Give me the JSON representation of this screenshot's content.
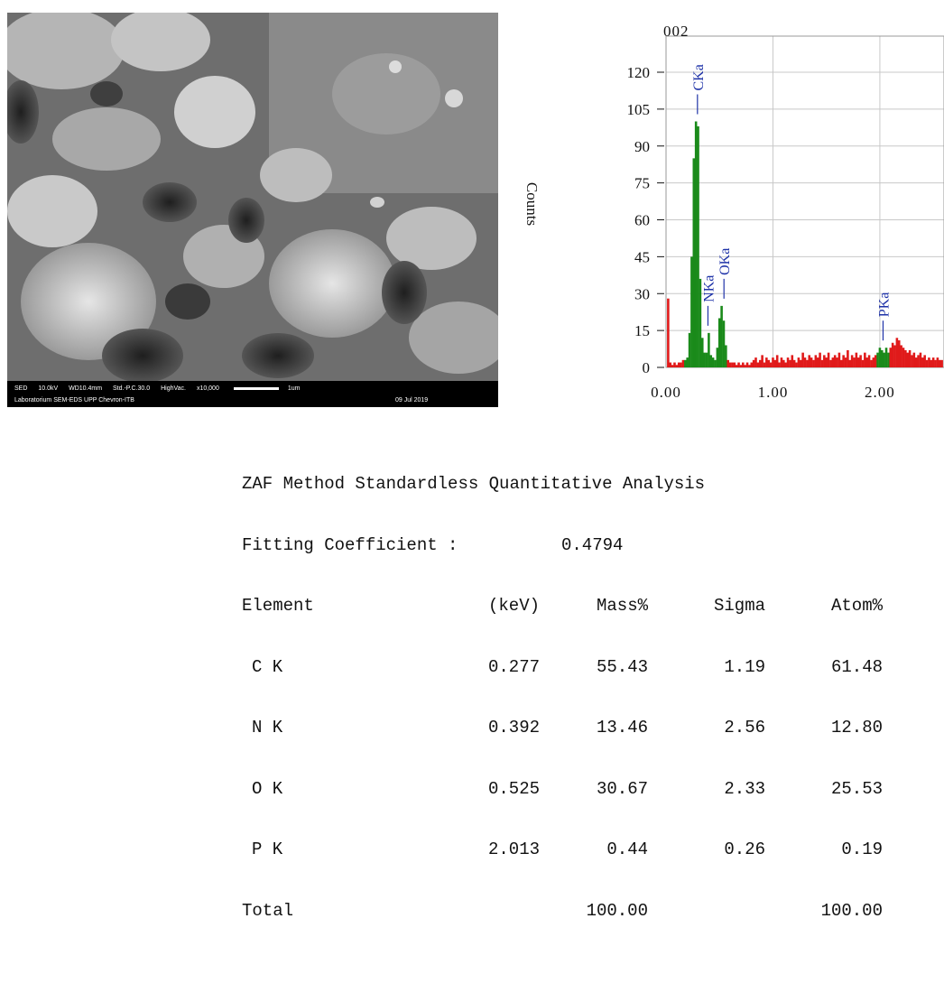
{
  "sem": {
    "scale_label": "1um",
    "info_row": [
      "SED",
      "10.0kV",
      "WD10.4mm",
      "Std.-P.C.30.0",
      "HighVac.",
      "x10,000"
    ],
    "lab": "Laboratorium SEM-EDS UPP Chevron-ITB",
    "date": "09 Jul 2019"
  },
  "chart_data": {
    "type": "bar",
    "title": "002",
    "ylabel": "Counts",
    "xlabel": "",
    "xlim": [
      0.0,
      2.6
    ],
    "ylim": [
      0,
      120
    ],
    "yticks": [
      "0",
      "15",
      "30",
      "45",
      "60",
      "75",
      "90",
      "105",
      "120"
    ],
    "xticks": [
      "0.00",
      "1.00",
      "2.00"
    ],
    "grid": true,
    "peaks": [
      {
        "label": "CKa",
        "x": 0.277,
        "y": 100,
        "color": "#1f33a8"
      },
      {
        "label": "NKa",
        "x": 0.392,
        "y": 14,
        "color": "#1f33a8"
      },
      {
        "label": "OKa",
        "x": 0.525,
        "y": 25,
        "color": "#1f33a8"
      },
      {
        "label": "PKa",
        "x": 2.013,
        "y": 8,
        "color": "#1f33a8"
      }
    ],
    "spectrum": [
      {
        "x": 0.02,
        "y": 28,
        "c": "r"
      },
      {
        "x": 0.04,
        "y": 2,
        "c": "r"
      },
      {
        "x": 0.06,
        "y": 1,
        "c": "r"
      },
      {
        "x": 0.08,
        "y": 2,
        "c": "r"
      },
      {
        "x": 0.1,
        "y": 1,
        "c": "r"
      },
      {
        "x": 0.12,
        "y": 2,
        "c": "r"
      },
      {
        "x": 0.14,
        "y": 2,
        "c": "r"
      },
      {
        "x": 0.16,
        "y": 3,
        "c": "r"
      },
      {
        "x": 0.18,
        "y": 3,
        "c": "g"
      },
      {
        "x": 0.2,
        "y": 4,
        "c": "g"
      },
      {
        "x": 0.22,
        "y": 14,
        "c": "g"
      },
      {
        "x": 0.24,
        "y": 45,
        "c": "g"
      },
      {
        "x": 0.26,
        "y": 85,
        "c": "g"
      },
      {
        "x": 0.28,
        "y": 100,
        "c": "g"
      },
      {
        "x": 0.3,
        "y": 98,
        "c": "g"
      },
      {
        "x": 0.32,
        "y": 36,
        "c": "g"
      },
      {
        "x": 0.34,
        "y": 12,
        "c": "g"
      },
      {
        "x": 0.36,
        "y": 6,
        "c": "g"
      },
      {
        "x": 0.38,
        "y": 6,
        "c": "g"
      },
      {
        "x": 0.4,
        "y": 14,
        "c": "g"
      },
      {
        "x": 0.42,
        "y": 5,
        "c": "g"
      },
      {
        "x": 0.44,
        "y": 4,
        "c": "g"
      },
      {
        "x": 0.46,
        "y": 3,
        "c": "g"
      },
      {
        "x": 0.48,
        "y": 8,
        "c": "g"
      },
      {
        "x": 0.5,
        "y": 20,
        "c": "g"
      },
      {
        "x": 0.52,
        "y": 25,
        "c": "g"
      },
      {
        "x": 0.54,
        "y": 19,
        "c": "g"
      },
      {
        "x": 0.56,
        "y": 9,
        "c": "g"
      },
      {
        "x": 0.58,
        "y": 3,
        "c": "r"
      },
      {
        "x": 0.6,
        "y": 2,
        "c": "r"
      },
      {
        "x": 0.62,
        "y": 2,
        "c": "r"
      },
      {
        "x": 0.64,
        "y": 2,
        "c": "r"
      },
      {
        "x": 0.66,
        "y": 1,
        "c": "r"
      },
      {
        "x": 0.68,
        "y": 2,
        "c": "r"
      },
      {
        "x": 0.7,
        "y": 1,
        "c": "r"
      },
      {
        "x": 0.72,
        "y": 2,
        "c": "r"
      },
      {
        "x": 0.74,
        "y": 1,
        "c": "r"
      },
      {
        "x": 0.76,
        "y": 2,
        "c": "r"
      },
      {
        "x": 0.78,
        "y": 1,
        "c": "r"
      },
      {
        "x": 0.8,
        "y": 2,
        "c": "r"
      },
      {
        "x": 0.82,
        "y": 3,
        "c": "r"
      },
      {
        "x": 0.84,
        "y": 4,
        "c": "r"
      },
      {
        "x": 0.86,
        "y": 2,
        "c": "r"
      },
      {
        "x": 0.88,
        "y": 3,
        "c": "r"
      },
      {
        "x": 0.9,
        "y": 5,
        "c": "r"
      },
      {
        "x": 0.92,
        "y": 2,
        "c": "r"
      },
      {
        "x": 0.94,
        "y": 4,
        "c": "r"
      },
      {
        "x": 0.96,
        "y": 3,
        "c": "r"
      },
      {
        "x": 0.98,
        "y": 2,
        "c": "r"
      },
      {
        "x": 1.0,
        "y": 4,
        "c": "r"
      },
      {
        "x": 1.02,
        "y": 3,
        "c": "r"
      },
      {
        "x": 1.04,
        "y": 5,
        "c": "r"
      },
      {
        "x": 1.06,
        "y": 2,
        "c": "r"
      },
      {
        "x": 1.08,
        "y": 4,
        "c": "r"
      },
      {
        "x": 1.1,
        "y": 3,
        "c": "r"
      },
      {
        "x": 1.12,
        "y": 2,
        "c": "r"
      },
      {
        "x": 1.14,
        "y": 4,
        "c": "r"
      },
      {
        "x": 1.16,
        "y": 3,
        "c": "r"
      },
      {
        "x": 1.18,
        "y": 5,
        "c": "r"
      },
      {
        "x": 1.2,
        "y": 3,
        "c": "r"
      },
      {
        "x": 1.22,
        "y": 2,
        "c": "r"
      },
      {
        "x": 1.24,
        "y": 4,
        "c": "r"
      },
      {
        "x": 1.26,
        "y": 3,
        "c": "r"
      },
      {
        "x": 1.28,
        "y": 6,
        "c": "r"
      },
      {
        "x": 1.3,
        "y": 4,
        "c": "r"
      },
      {
        "x": 1.32,
        "y": 3,
        "c": "r"
      },
      {
        "x": 1.34,
        "y": 5,
        "c": "r"
      },
      {
        "x": 1.36,
        "y": 4,
        "c": "r"
      },
      {
        "x": 1.38,
        "y": 3,
        "c": "r"
      },
      {
        "x": 1.4,
        "y": 5,
        "c": "r"
      },
      {
        "x": 1.42,
        "y": 4,
        "c": "r"
      },
      {
        "x": 1.44,
        "y": 6,
        "c": "r"
      },
      {
        "x": 1.46,
        "y": 3,
        "c": "r"
      },
      {
        "x": 1.48,
        "y": 5,
        "c": "r"
      },
      {
        "x": 1.5,
        "y": 4,
        "c": "r"
      },
      {
        "x": 1.52,
        "y": 6,
        "c": "r"
      },
      {
        "x": 1.54,
        "y": 3,
        "c": "r"
      },
      {
        "x": 1.56,
        "y": 4,
        "c": "r"
      },
      {
        "x": 1.58,
        "y": 5,
        "c": "r"
      },
      {
        "x": 1.6,
        "y": 4,
        "c": "r"
      },
      {
        "x": 1.62,
        "y": 6,
        "c": "r"
      },
      {
        "x": 1.64,
        "y": 3,
        "c": "r"
      },
      {
        "x": 1.66,
        "y": 5,
        "c": "r"
      },
      {
        "x": 1.68,
        "y": 4,
        "c": "r"
      },
      {
        "x": 1.7,
        "y": 7,
        "c": "r"
      },
      {
        "x": 1.72,
        "y": 3,
        "c": "r"
      },
      {
        "x": 1.74,
        "y": 5,
        "c": "r"
      },
      {
        "x": 1.76,
        "y": 4,
        "c": "r"
      },
      {
        "x": 1.78,
        "y": 6,
        "c": "r"
      },
      {
        "x": 1.8,
        "y": 4,
        "c": "r"
      },
      {
        "x": 1.82,
        "y": 5,
        "c": "r"
      },
      {
        "x": 1.84,
        "y": 3,
        "c": "r"
      },
      {
        "x": 1.86,
        "y": 6,
        "c": "r"
      },
      {
        "x": 1.88,
        "y": 4,
        "c": "r"
      },
      {
        "x": 1.9,
        "y": 5,
        "c": "r"
      },
      {
        "x": 1.92,
        "y": 3,
        "c": "r"
      },
      {
        "x": 1.94,
        "y": 4,
        "c": "r"
      },
      {
        "x": 1.96,
        "y": 5,
        "c": "r"
      },
      {
        "x": 1.98,
        "y": 6,
        "c": "g"
      },
      {
        "x": 2.0,
        "y": 8,
        "c": "g"
      },
      {
        "x": 2.02,
        "y": 7,
        "c": "g"
      },
      {
        "x": 2.04,
        "y": 6,
        "c": "g"
      },
      {
        "x": 2.06,
        "y": 8,
        "c": "g"
      },
      {
        "x": 2.08,
        "y": 6,
        "c": "g"
      },
      {
        "x": 2.1,
        "y": 8,
        "c": "r"
      },
      {
        "x": 2.12,
        "y": 10,
        "c": "r"
      },
      {
        "x": 2.14,
        "y": 9,
        "c": "r"
      },
      {
        "x": 2.16,
        "y": 12,
        "c": "r"
      },
      {
        "x": 2.18,
        "y": 11,
        "c": "r"
      },
      {
        "x": 2.2,
        "y": 9,
        "c": "r"
      },
      {
        "x": 2.22,
        "y": 8,
        "c": "r"
      },
      {
        "x": 2.24,
        "y": 7,
        "c": "r"
      },
      {
        "x": 2.26,
        "y": 6,
        "c": "r"
      },
      {
        "x": 2.28,
        "y": 7,
        "c": "r"
      },
      {
        "x": 2.3,
        "y": 5,
        "c": "r"
      },
      {
        "x": 2.32,
        "y": 6,
        "c": "r"
      },
      {
        "x": 2.34,
        "y": 4,
        "c": "r"
      },
      {
        "x": 2.36,
        "y": 5,
        "c": "r"
      },
      {
        "x": 2.38,
        "y": 6,
        "c": "r"
      },
      {
        "x": 2.4,
        "y": 4,
        "c": "r"
      },
      {
        "x": 2.42,
        "y": 5,
        "c": "r"
      },
      {
        "x": 2.44,
        "y": 3,
        "c": "r"
      },
      {
        "x": 2.46,
        "y": 4,
        "c": "r"
      },
      {
        "x": 2.48,
        "y": 3,
        "c": "r"
      },
      {
        "x": 2.5,
        "y": 4,
        "c": "r"
      },
      {
        "x": 2.52,
        "y": 3,
        "c": "r"
      },
      {
        "x": 2.54,
        "y": 4,
        "c": "r"
      },
      {
        "x": 2.56,
        "y": 3,
        "c": "r"
      },
      {
        "x": 2.58,
        "y": 3,
        "c": "r"
      }
    ],
    "colors": {
      "bar_red": "#e01a1a",
      "bar_green": "#1a8a1a",
      "peak_label": "#1f33a8",
      "grid": "#c8c8c8"
    }
  },
  "zaf": {
    "title": "ZAF Method Standardless Quantitative Analysis",
    "fitting_label": "Fitting Coefficient :",
    "fitting_value": "0.4794",
    "headers": [
      "Element",
      "(keV)",
      "Mass%",
      "Sigma",
      "Atom%"
    ],
    "rows": [
      [
        "C K",
        "0.277",
        "55.43",
        "1.19",
        "61.48"
      ],
      [
        "N K",
        "0.392",
        "13.46",
        "2.56",
        "12.80"
      ],
      [
        "O K",
        "0.525",
        "30.67",
        "2.33",
        "25.53"
      ],
      [
        "P K",
        "2.013",
        "0.44",
        "0.26",
        "0.19"
      ]
    ],
    "total_label": "Total",
    "total_mass": "100.00",
    "total_atom": "100.00"
  }
}
